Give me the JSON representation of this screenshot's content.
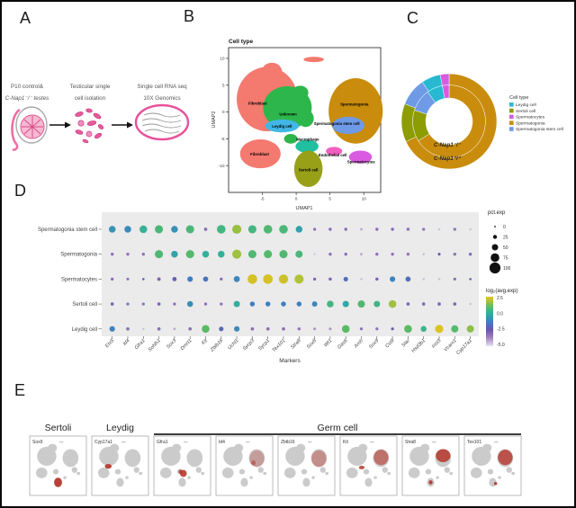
{
  "panel_labels": {
    "a": "A",
    "b": "B",
    "c": "C",
    "d": "D",
    "e": "E"
  },
  "workflow": {
    "steps": [
      {
        "line1": "P10 control&",
        "line2": "C-Nap1⁻/⁻ testes",
        "icon": "testis-icon"
      },
      {
        "line1": "Testicular single",
        "line2": "cell isolation",
        "icon": "dissociated-cells-icon"
      },
      {
        "line1": "Single cell RNA seq",
        "line2": "10X Genomics",
        "icon": "10x-chip-icon"
      }
    ]
  },
  "chart_data": [
    {
      "id": "umap",
      "type": "scatter",
      "title": "Cell type",
      "xlabel": "UMAP1",
      "ylabel": "UMAP2",
      "xlim": [
        -10,
        12.5
      ],
      "ylim": [
        -15,
        12
      ],
      "xticks": [
        -5,
        0,
        5,
        10
      ],
      "yticks": [
        10,
        5,
        0,
        -5,
        -10
      ],
      "clusters": [
        {
          "name": "Fibroblast",
          "color": "#F4796F",
          "label_xy": [
            -5.7,
            1.6
          ],
          "blobs": [
            [
              -4.3,
              2.4,
              4.5,
              6.0
            ],
            [
              -3.6,
              7.5,
              1.5,
              1.7
            ],
            [
              2.6,
              9.8,
              1.5,
              0.5
            ]
          ]
        },
        {
          "name": "Unknown",
          "color": "#2DB64B",
          "label_xy": [
            -1.2,
            -0.4
          ],
          "blobs": [
            [
              -1.3,
              0.8,
              3.6,
              4.0
            ],
            [
              1.4,
              -1.2,
              1.2,
              1.6
            ],
            [
              -0.8,
              -5.0,
              1.0,
              0.9
            ],
            [
              0.6,
              3.6,
              1.2,
              1.3
            ]
          ]
        },
        {
          "name": "Leydig cell",
          "color": "#41B7E6",
          "label_xy": [
            -2.1,
            -2.7
          ],
          "blobs": [
            [
              -2.1,
              -2.6,
              2.5,
              1.2
            ]
          ]
        },
        {
          "name": "Fibroblast",
          "color": "#F4796F",
          "label_xy": [
            -5.4,
            -7.9
          ],
          "blobs": [
            [
              -5.3,
              -7.8,
              3.0,
              2.7
            ]
          ]
        },
        {
          "name": "Macrophage",
          "color": "#1FBF9F",
          "label_xy": [
            1.7,
            -5.1
          ],
          "blobs": [
            [
              1.6,
              -6.4,
              1.7,
              1.2
            ]
          ]
        },
        {
          "name": "Sertoli cell",
          "color": "#98A018",
          "label_xy": [
            1.8,
            -10.8
          ],
          "blobs": [
            [
              1.8,
              -10.6,
              2.1,
              3.4
            ]
          ]
        },
        {
          "name": "Endothelial cell",
          "color": "#F05FC0",
          "label_xy": [
            5.4,
            -8.0
          ],
          "blobs": [
            [
              5.6,
              -7.3,
              1.2,
              0.8
            ]
          ]
        },
        {
          "name": "Spermatocytes",
          "color": "#D95BE0",
          "label_xy": [
            9.6,
            -9.3
          ],
          "blobs": [
            [
              9.5,
              -8.4,
              1.7,
              1.2
            ]
          ]
        },
        {
          "name": "Spermatogonia",
          "color": "#C98C0D",
          "label_xy": [
            8.6,
            1.4
          ],
          "blobs": [
            [
              8.8,
              0.2,
              4.0,
              6.1
            ]
          ]
        },
        {
          "name": "Spermatogonia stem cell",
          "color": "#6E9AE6",
          "label_xy": [
            6.0,
            -2.2
          ],
          "blobs": [
            [
              7.7,
              -2.5,
              2.4,
              1.6
            ]
          ]
        }
      ]
    },
    {
      "id": "cell-proportions",
      "type": "pie",
      "legend_title": "Cell type",
      "categories": [
        "Leydig cell",
        "Sertoli cell",
        "Spermatocytes",
        "Spermatogonia",
        "Spermatogonia stem cell"
      ],
      "colors": [
        "#27B9D1",
        "#8D9C00",
        "#D95BE0",
        "#C98C0D",
        "#6E9AE6"
      ],
      "clockwise_order": [
        3,
        1,
        4,
        0,
        2
      ],
      "rings": [
        {
          "label": "C-Nap1⁻/⁻",
          "values": [
            7,
            14,
            3,
            66,
            10
          ]
        },
        {
          "label": "C-Nap1⁺/⁺",
          "values": [
            6.5,
            13,
            3,
            68,
            9.5
          ]
        }
      ]
    },
    {
      "id": "marker-dotplot",
      "type": "dotplot",
      "xlabel": "Markers",
      "cell_types": [
        "Spermatogonia stem cell",
        "Spermatogonia",
        "Spermatocytes",
        "Sertoli cell",
        "Leydig cell"
      ],
      "markers": [
        "Etv5",
        "Id4",
        "Gfra1",
        "Sohlh1",
        "Sox3",
        "Dmrt1",
        "Kit",
        "Zbtb16",
        "Uchl1",
        "Sycp3",
        "Sycp1",
        "Tex101",
        "Stra8",
        "Sox8",
        "Wt1",
        "Gas6",
        "Amh",
        "Sox9",
        "Cst9",
        "Star",
        "Hsd3b1",
        "Insl3",
        "Vcam1",
        "Cyp17a1"
      ],
      "pct": [
        [
          55,
          55,
          65,
          70,
          55,
          70,
          18,
          75,
          80,
          70,
          75,
          75,
          55,
          15,
          16,
          16,
          10,
          16,
          16,
          16,
          15,
          8,
          15,
          8
        ],
        [
          15,
          15,
          15,
          70,
          55,
          70,
          55,
          55,
          80,
          70,
          70,
          70,
          60,
          6,
          15,
          15,
          10,
          15,
          15,
          15,
          8,
          12,
          15,
          15
        ],
        [
          15,
          12,
          8,
          20,
          28,
          42,
          38,
          14,
          48,
          85,
          85,
          82,
          80,
          15,
          16,
          32,
          6,
          16,
          42,
          38,
          7,
          7,
          14,
          8
        ],
        [
          18,
          14,
          14,
          18,
          14,
          45,
          14,
          14,
          50,
          35,
          35,
          35,
          35,
          40,
          55,
          50,
          60,
          50,
          65,
          18,
          18,
          18,
          18,
          6
        ],
        [
          42,
          18,
          6,
          18,
          9,
          18,
          65,
          32,
          42,
          18,
          18,
          18,
          15,
          12,
          12,
          65,
          14,
          14,
          14,
          65,
          45,
          70,
          60,
          60
        ]
      ],
      "avg": [
        [
          -0.8,
          -1.0,
          0.2,
          0.6,
          -0.8,
          0.6,
          -3.2,
          0.5,
          1.6,
          0.5,
          0.7,
          0.6,
          -0.4,
          -3.4,
          -3.2,
          -3.2,
          -4.2,
          -3.3,
          -3.2,
          -3.3,
          -3.4,
          -4.6,
          -3.4,
          -4.6
        ],
        [
          -3.3,
          -3.4,
          -3.3,
          0.7,
          -0.3,
          0.8,
          0.1,
          0.1,
          1.7,
          0.7,
          0.8,
          0.7,
          0.6,
          -4.6,
          -3.3,
          -3.2,
          -4.2,
          -3.3,
          -3.3,
          -3.4,
          -4.5,
          -2.4,
          -3.3,
          -3.1
        ],
        [
          -3.2,
          -3.3,
          -2.2,
          -2.9,
          -2.2,
          -1.3,
          -1.7,
          -3.1,
          -1.1,
          2.3,
          2.3,
          2.2,
          1.9,
          -3.0,
          -2.9,
          -1.8,
          -4.4,
          -2.9,
          -1.2,
          -1.8,
          -4.5,
          -4.5,
          -3.2,
          -2.2
        ],
        [
          -2.9,
          -3.2,
          -3.3,
          -3.0,
          -3.2,
          -0.9,
          -3.2,
          -3.3,
          0.1,
          -1.3,
          -1.3,
          -1.4,
          -1.3,
          -1.1,
          0.5,
          -0.2,
          0.7,
          0.4,
          1.7,
          -3.0,
          -3.1,
          -3.0,
          -3.0,
          -4.5
        ],
        [
          -1.2,
          -3.2,
          -4.5,
          -3.2,
          -4.2,
          -3.2,
          0.9,
          -2.0,
          -1.0,
          -3.2,
          -3.2,
          -3.2,
          -3.3,
          -3.9,
          -3.9,
          0.9,
          -3.3,
          -3.3,
          -2.7,
          0.9,
          0.3,
          2.4,
          0.8,
          1.5
        ]
      ],
      "size_legend": {
        "title": "pct.exp",
        "values": [
          0,
          25,
          50,
          75,
          100
        ]
      },
      "color_legend": {
        "title": "log₂(avg.exp)",
        "tick_labels": [
          "2.5",
          "0.0",
          "-2.5",
          "-5.0"
        ],
        "domain": [
          -5,
          2.5
        ]
      }
    },
    {
      "id": "feature-plots",
      "type": "feature-umap",
      "groups": [
        {
          "label": "Sertoli",
          "from": 0,
          "to": 0,
          "underline": false
        },
        {
          "label": "Leydig",
          "from": 1,
          "to": 1,
          "underline": false
        },
        {
          "label": "Germ cell",
          "from": 2,
          "to": 7,
          "underline": true
        }
      ],
      "plots": [
        {
          "gene": "Sox9",
          "highlights": [
            [
              0.5,
              0.78,
              0.07,
              0.08,
              0.92
            ]
          ]
        },
        {
          "gene": "Cyp17a1",
          "highlights": [
            [
              0.29,
              0.51,
              0.06,
              0.04,
              0.92
            ]
          ]
        },
        {
          "gene": "Gfra1",
          "highlights": [
            [
              0.52,
              0.63,
              0.06,
              0.06,
              0.88
            ],
            [
              0.47,
              0.6,
              0.035,
              0.035,
              0.8
            ]
          ]
        },
        {
          "gene": "Id4",
          "highlights": [
            [
              0.72,
              0.38,
              0.13,
              0.14,
              0.3
            ],
            [
              0.66,
              0.45,
              0.04,
              0.04,
              0.55
            ]
          ]
        },
        {
          "gene": "Zbtb16",
          "highlights": [
            [
              0.72,
              0.38,
              0.13,
              0.14,
              0.4
            ]
          ]
        },
        {
          "gene": "Kit",
          "highlights": [
            [
              0.72,
              0.36,
              0.13,
              0.13,
              0.6
            ],
            [
              0.38,
              0.53,
              0.05,
              0.03,
              0.85
            ]
          ]
        },
        {
          "gene": "Stra8",
          "highlights": [
            [
              0.72,
              0.33,
              0.13,
              0.11,
              0.85
            ],
            [
              0.5,
              0.78,
              0.035,
              0.035,
              0.9
            ]
          ]
        },
        {
          "gene": "Tex101",
          "highlights": [
            [
              0.72,
              0.36,
              0.13,
              0.13,
              0.8
            ],
            [
              0.55,
              0.8,
              0.028,
              0.028,
              0.9
            ]
          ]
        }
      ]
    }
  ]
}
